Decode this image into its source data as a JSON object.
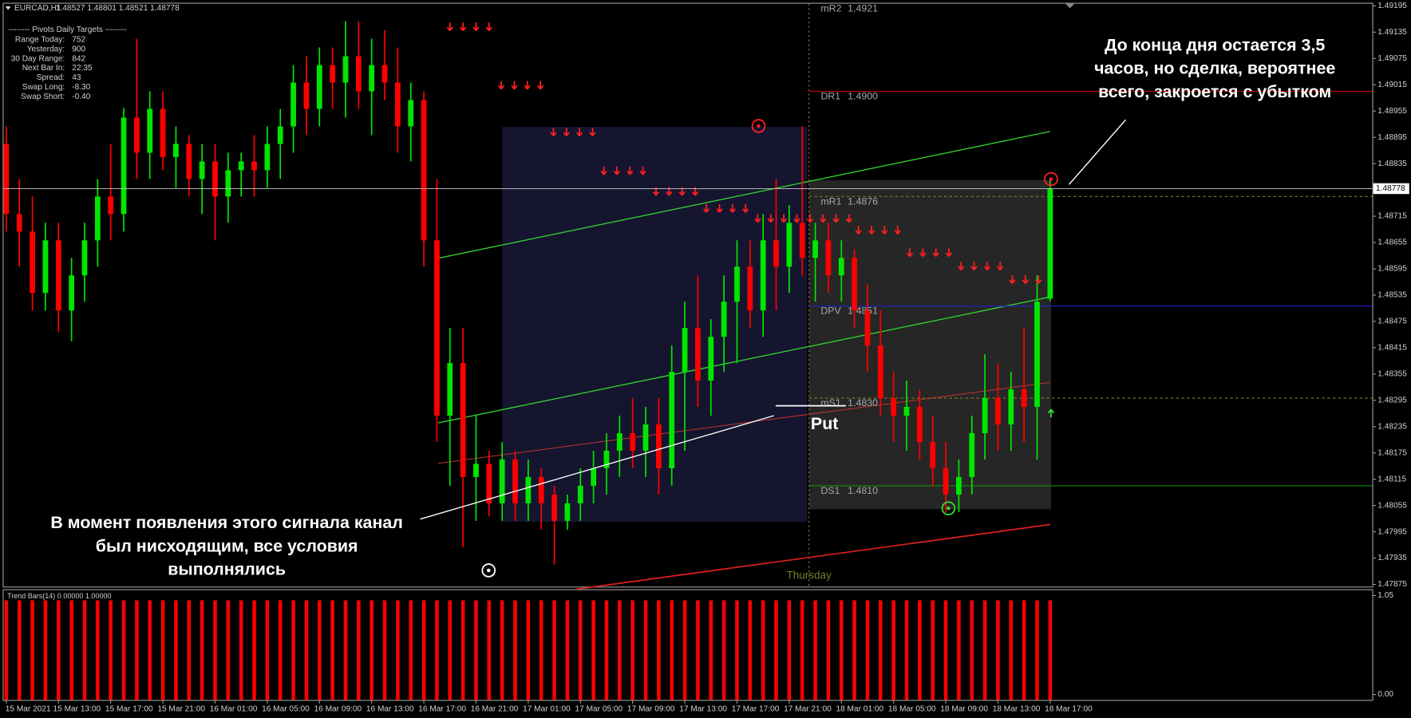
{
  "chart_data": {
    "type": "candlestick",
    "title": "EURCAD,H1",
    "quote": "1.48527 1.48801 1.48521 1.48778",
    "up_color": "#00e600",
    "down_color": "#ff0000",
    "open": [
      1.4888,
      1.4872,
      1.4868,
      1.4854,
      1.4866,
      1.485,
      1.4858,
      1.4866,
      1.4876,
      1.4872,
      1.4894,
      1.4886,
      1.4896,
      1.4885,
      1.4888,
      1.488,
      1.4884,
      1.4876,
      1.4882,
      1.4884,
      1.4882,
      1.4888,
      1.4892,
      1.4902,
      1.4896,
      1.4906,
      1.4902,
      1.4908,
      1.49,
      1.4906,
      1.4902,
      1.4892,
      1.4898,
      1.4866,
      1.4826,
      1.4838,
      1.4812,
      1.4815,
      1.4806,
      1.4816,
      1.4806,
      1.4812,
      1.4808,
      1.4802,
      1.4806,
      1.481,
      1.4814,
      1.4818,
      1.4822,
      1.4818,
      1.4824,
      1.4814,
      1.4836,
      1.4846,
      1.4834,
      1.4844,
      1.4852,
      1.486,
      1.485,
      1.4866,
      1.486,
      1.487,
      1.4862,
      1.4866,
      1.4858,
      1.4862,
      1.485,
      1.4842,
      1.483,
      1.4826,
      1.4828,
      1.482,
      1.4814,
      1.4808,
      1.4812,
      1.4822,
      1.483,
      1.4824,
      1.4832,
      1.4828,
      1.48527
    ],
    "high": [
      1.4892,
      1.488,
      1.4876,
      1.487,
      1.487,
      1.4862,
      1.487,
      1.488,
      1.4888,
      1.49,
      1.4912,
      1.49,
      1.49,
      1.4892,
      1.489,
      1.4888,
      1.4888,
      1.4886,
      1.4886,
      1.489,
      1.4892,
      1.4896,
      1.4906,
      1.4908,
      1.491,
      1.491,
      1.4916,
      1.4916,
      1.4912,
      1.4914,
      1.491,
      1.4902,
      1.49,
      1.488,
      1.4846,
      1.4846,
      1.4826,
      1.4818,
      1.482,
      1.4818,
      1.4816,
      1.4814,
      1.481,
      1.4808,
      1.4814,
      1.4818,
      1.4822,
      1.4826,
      1.483,
      1.4828,
      1.483,
      1.4842,
      1.4852,
      1.4858,
      1.4848,
      1.4858,
      1.4866,
      1.4866,
      1.4872,
      1.488,
      1.4874,
      1.4892,
      1.487,
      1.487,
      1.4866,
      1.4864,
      1.4856,
      1.485,
      1.4836,
      1.4834,
      1.4832,
      1.4826,
      1.482,
      1.4816,
      1.4826,
      1.484,
      1.4838,
      1.4836,
      1.4846,
      1.4858,
      1.48801
    ],
    "low": [
      1.4868,
      1.486,
      1.485,
      1.485,
      1.4845,
      1.4843,
      1.4852,
      1.486,
      1.4866,
      1.4868,
      1.488,
      1.488,
      1.4882,
      1.4878,
      1.4876,
      1.4872,
      1.4866,
      1.487,
      1.4876,
      1.4876,
      1.4878,
      1.488,
      1.4886,
      1.489,
      1.4892,
      1.4896,
      1.4894,
      1.4896,
      1.489,
      1.4898,
      1.4886,
      1.4884,
      1.486,
      1.482,
      1.481,
      1.4796,
      1.4802,
      1.4803,
      1.4802,
      1.4802,
      1.4802,
      1.48,
      1.4792,
      1.48,
      1.4802,
      1.4806,
      1.4808,
      1.4812,
      1.4814,
      1.4812,
      1.4808,
      1.481,
      1.4818,
      1.4828,
      1.4826,
      1.4836,
      1.4838,
      1.4846,
      1.4844,
      1.485,
      1.4854,
      1.4858,
      1.4852,
      1.4854,
      1.4852,
      1.4846,
      1.4836,
      1.4826,
      1.482,
      1.4818,
      1.4816,
      1.481,
      1.4804,
      1.4804,
      1.4808,
      1.4816,
      1.4818,
      1.4818,
      1.482,
      1.4816,
      1.48521
    ],
    "close": [
      1.4872,
      1.4868,
      1.4854,
      1.4866,
      1.485,
      1.4858,
      1.4866,
      1.4876,
      1.4872,
      1.4894,
      1.4886,
      1.4896,
      1.4885,
      1.4888,
      1.488,
      1.4884,
      1.4876,
      1.4882,
      1.4884,
      1.4882,
      1.4888,
      1.4892,
      1.4902,
      1.4896,
      1.4906,
      1.4902,
      1.4908,
      1.49,
      1.4906,
      1.4902,
      1.4892,
      1.4898,
      1.4866,
      1.4826,
      1.4838,
      1.4812,
      1.4815,
      1.4806,
      1.4816,
      1.4806,
      1.4812,
      1.4806,
      1.4802,
      1.4806,
      1.481,
      1.4814,
      1.4818,
      1.4822,
      1.4818,
      1.4824,
      1.4814,
      1.4836,
      1.4846,
      1.4834,
      1.4844,
      1.4852,
      1.486,
      1.485,
      1.4866,
      1.486,
      1.487,
      1.4862,
      1.4866,
      1.4858,
      1.4862,
      1.485,
      1.4842,
      1.483,
      1.4826,
      1.4828,
      1.482,
      1.4814,
      1.4808,
      1.4812,
      1.4822,
      1.483,
      1.4824,
      1.4832,
      1.4828,
      1.4852,
      1.48778
    ],
    "ylim": [
      1.4787,
      1.492
    ],
    "yticks": [
      1.49195,
      1.49135,
      1.49075,
      1.49015,
      1.48955,
      1.48895,
      1.48835,
      1.48715,
      1.48655,
      1.48595,
      1.48535,
      1.48475,
      1.48415,
      1.48355,
      1.48295,
      1.48235,
      1.48175,
      1.48115,
      1.48055,
      1.47995,
      1.47935,
      1.47875
    ],
    "current_price": 1.48778,
    "xticks": [
      {
        "value": 0,
        "label": "15 Mar 2021"
      },
      {
        "value": 4,
        "label": "15 Mar 13:00"
      },
      {
        "value": 8,
        "label": "15 Mar 17:00"
      },
      {
        "value": 12,
        "label": "15 Mar 21:00"
      },
      {
        "value": 16,
        "label": "16 Mar 01:00"
      },
      {
        "value": 20,
        "label": "16 Mar 05:00"
      },
      {
        "value": 24,
        "label": "16 Mar 09:00"
      },
      {
        "value": 28,
        "label": "16 Mar 13:00"
      },
      {
        "value": 32,
        "label": "16 Mar 17:00"
      },
      {
        "value": 36,
        "label": "16 Mar 21:00"
      },
      {
        "value": 40,
        "label": "17 Mar 01:00"
      },
      {
        "value": 44,
        "label": "17 Mar 05:00"
      },
      {
        "value": 48,
        "label": "17 Mar 09:00"
      },
      {
        "value": 52,
        "label": "17 Mar 13:00"
      },
      {
        "value": 56,
        "label": "17 Mar 17:00"
      },
      {
        "value": 60,
        "label": "17 Mar 21:00"
      },
      {
        "value": 64,
        "label": "18 Mar 01:00"
      },
      {
        "value": 68,
        "label": "18 Mar 05:00"
      },
      {
        "value": 72,
        "label": "18 Mar 09:00"
      },
      {
        "value": 76,
        "label": "18 Mar 13:00"
      },
      {
        "value": 80,
        "label": "18 Mar 17:00"
      }
    ],
    "day_label": "Thursday",
    "pivots": [
      {
        "name": "mR2",
        "value": {
          "value": 1.4921,
          "label": "1.4921"
        }
      },
      {
        "name": "DR1",
        "value": {
          "value": 1.49,
          "label": "1.4900"
        },
        "line_color": "#c00000"
      },
      {
        "name": "mR1",
        "value": {
          "value": 1.4876,
          "label": "1.4876"
        },
        "line_color": "#8a7a30",
        "dashed": true
      },
      {
        "name": "DPV",
        "value": {
          "value": 1.4851,
          "label": "1.4851"
        },
        "line_color": "#2020d0"
      },
      {
        "name": "mS1",
        "value": {
          "value": 1.483,
          "label": "1.4830"
        },
        "line_color": "#8a7a30",
        "dashed": true
      },
      {
        "name": "DS1",
        "value": {
          "value": 1.481,
          "label": "1.4810"
        },
        "line_color": "#109010"
      }
    ],
    "indicator": {
      "title": "Trend Bars(14) 0.00000 1.00000",
      "color": "#ff0000",
      "ylim": [
        0,
        1.05
      ],
      "yticks": [
        {
          "value": 1.05,
          "label": "1.05"
        },
        {
          "value": 0,
          "label": "0.00"
        }
      ],
      "values": [
        1,
        1,
        1,
        1,
        1,
        1,
        1,
        1,
        1,
        1,
        1,
        1,
        1,
        1,
        1,
        1,
        1,
        1,
        1,
        1,
        1,
        1,
        1,
        1,
        1,
        1,
        1,
        1,
        1,
        1,
        1,
        1,
        1,
        1,
        1,
        1,
        1,
        1,
        1,
        1,
        1,
        1,
        1,
        1,
        1,
        1,
        1,
        1,
        1,
        1,
        1,
        1,
        1,
        1,
        1,
        1,
        1,
        1,
        1,
        1,
        1,
        1,
        1,
        1,
        1,
        1,
        1,
        1,
        1,
        1,
        1,
        1,
        1,
        1,
        1,
        1,
        1,
        1,
        1,
        1,
        1
      ]
    }
  },
  "panel": {
    "title": "--------  Pivots Daily Targets  --------",
    "rows": [
      [
        "Range  Today:",
        "752"
      ],
      [
        "Yesterday:",
        "900"
      ],
      [
        "30 Day Range:",
        "842"
      ],
      [
        "Next Bar In:",
        "22:35"
      ],
      [
        "Spread:",
        "43"
      ],
      [
        "Swap  Long:",
        "-8.30"
      ],
      [
        "Swap  Short:",
        "-0.40"
      ]
    ]
  },
  "annotations": {
    "signal_note": [
      "В момент появления этого сигнала канал",
      "был нисходящим, все условия",
      "выполнялись"
    ],
    "close_note": [
      "До конца дня остается 3,5",
      "часов, но сделка, вероятнее",
      "всего, закроется с убытком"
    ],
    "signal": "Put"
  }
}
